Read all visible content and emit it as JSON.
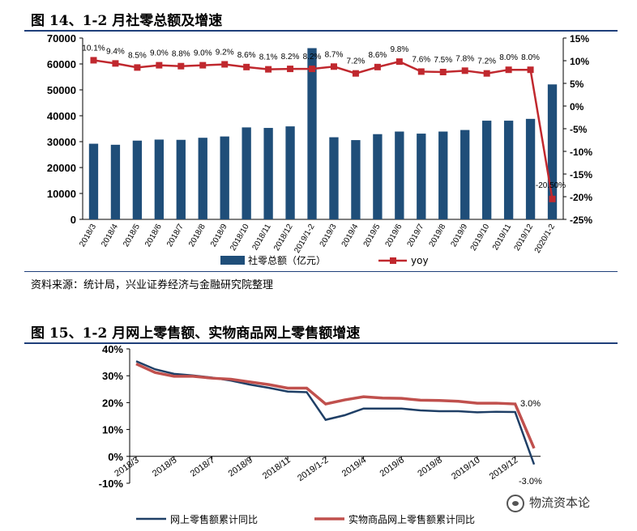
{
  "figure14": {
    "title": "图 14、1-2 月社零总额及增速",
    "source": "资料来源：统计局，兴业证券经济与金融研究院整理",
    "colors": {
      "bar": "#1f4e79",
      "line": "#c0282e"
    },
    "chart_data": {
      "type": "bar+line",
      "categories": [
        "2018/3",
        "2018/4",
        "2018/5",
        "2018/6",
        "2018/7",
        "2018/8",
        "2018/9",
        "2018/10",
        "2018/11",
        "2018/12",
        "2019/1-2",
        "2019/3",
        "2019/4",
        "2019/5",
        "2019/6",
        "2019/7",
        "2019/8",
        "2019/9",
        "2019/10",
        "2019/11",
        "2019/12",
        "2020/1-2"
      ],
      "series": [
        {
          "name": "社零总额（亿元）",
          "kind": "bar",
          "axis": "left",
          "values": [
            29200,
            28800,
            30400,
            30800,
            30700,
            31500,
            32000,
            35500,
            35300,
            35900,
            66100,
            31700,
            30600,
            32900,
            33900,
            33100,
            33900,
            34500,
            38100,
            38100,
            38800,
            52100
          ]
        },
        {
          "name": "yoy",
          "kind": "line",
          "axis": "right",
          "values": [
            10.1,
            9.4,
            8.5,
            9.0,
            8.8,
            9.0,
            9.2,
            8.6,
            8.1,
            8.2,
            8.2,
            8.7,
            7.2,
            8.6,
            9.8,
            7.6,
            7.5,
            7.8,
            7.2,
            8.0,
            8.0,
            -20.5
          ],
          "labels": [
            "10.1%",
            "9.4%",
            "8.5%",
            "9.0%",
            "8.8%",
            "9.0%",
            "9.2%",
            "8.6%",
            "8.1%",
            "8.2%",
            "8.2%",
            "8.7%",
            "7.2%",
            "8.6%",
            "9.8%",
            "7.6%",
            "7.5%",
            "7.8%",
            "7.2%",
            "8.0%",
            "8.0%",
            "-20.50%"
          ]
        }
      ],
      "yleft": {
        "lim": [
          0,
          70000
        ],
        "ticks": [
          "0",
          "10000",
          "20000",
          "30000",
          "40000",
          "50000",
          "60000",
          "70000"
        ]
      },
      "yright": {
        "lim": [
          -25,
          15
        ],
        "ticks": [
          "-25%",
          "-20%",
          "-15%",
          "-10%",
          "-5%",
          "0%",
          "5%",
          "10%",
          "15%"
        ]
      },
      "legend": [
        "社零总额（亿元）",
        "yoy"
      ],
      "legend_position": "bottom"
    }
  },
  "figure15": {
    "title": "图 15、1-2 月网上零售额、实物商品网上零售额增速",
    "colors": {
      "online": "#1f3f66",
      "physical": "#c0504d"
    },
    "chart_data": {
      "type": "line",
      "x": [
        "2018/3",
        "2018/4",
        "2018/5",
        "2018/6",
        "2018/7",
        "2018/8",
        "2018/9",
        "2018/10",
        "2018/11",
        "2018/12",
        "2019/1-2",
        "2019/3",
        "2019/4",
        "2019/5",
        "2019/6",
        "2019/7",
        "2019/8",
        "2019/9",
        "2019/10",
        "2019/11",
        "2019/12",
        "2020/1-2"
      ],
      "xticks": [
        "2018/3",
        "2018/5",
        "2018/7",
        "2018/9",
        "2018/11",
        "2019/1-2",
        "2019/4",
        "2019/6",
        "2019/8",
        "2019/10",
        "2019/12"
      ],
      "series": [
        {
          "name": "网上零售额累计同比",
          "values": [
            35.4,
            32.4,
            30.7,
            30.1,
            29.3,
            28.2,
            26.7,
            25.5,
            24.1,
            23.9,
            13.6,
            15.3,
            17.8,
            17.8,
            17.8,
            17.1,
            16.8,
            16.8,
            16.4,
            16.6,
            16.5,
            -3.0
          ]
        },
        {
          "name": "实物商品网上零售额累计同比",
          "values": [
            34.4,
            31.2,
            29.8,
            29.8,
            29.1,
            28.7,
            27.7,
            26.7,
            25.4,
            25.4,
            19.5,
            21.0,
            22.2,
            21.7,
            21.6,
            20.9,
            20.8,
            20.5,
            19.8,
            19.8,
            19.5,
            3.0
          ]
        }
      ],
      "annotations": [
        "3.0%",
        "-3.0%"
      ],
      "ylim": [
        -10,
        40
      ],
      "yticks": [
        "-10%",
        "0%",
        "10%",
        "20%",
        "30%",
        "40%"
      ],
      "legend_position": "bottom"
    }
  },
  "watermark": {
    "text": "物流资本论"
  }
}
